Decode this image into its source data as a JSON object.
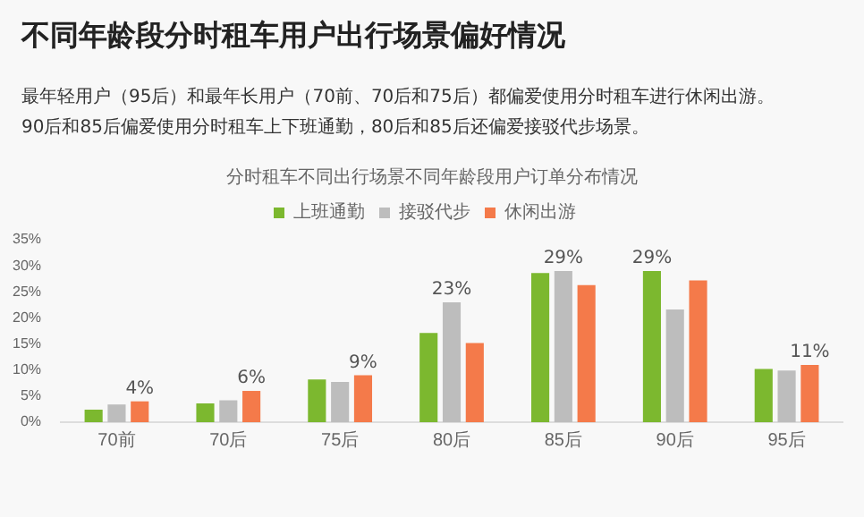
{
  "chart_data": {
    "type": "bar",
    "title": "不同年龄段分时租车用户出行场景偏好情况",
    "subtitle": "最年轻用户（95后）和最年长用户（70前、70后和75后）都偏爱使用分时租车进行休闲出游。\n90后和85后偏爱使用分时租车上下班通勤，80后和85后还偏爱接驳代步场景。",
    "annotations": [
      "分时租车不同出行场景不同年龄段用户订单分布情况"
    ],
    "categories": [
      "70前",
      "70后",
      "75后",
      "80后",
      "85后",
      "90后",
      "95后"
    ],
    "series": [
      {
        "name": "上班通勤",
        "color": "#7cb82f",
        "values": [
          2.4,
          3.6,
          8.2,
          17.1,
          28.6,
          29,
          10.2
        ],
        "value_labels": [
          null,
          null,
          null,
          null,
          null,
          "29%",
          null
        ]
      },
      {
        "name": "接驳代步",
        "color": "#bdbdbd",
        "values": [
          3.4,
          4.2,
          7.7,
          23,
          29,
          21.6,
          9.9
        ],
        "value_labels": [
          null,
          null,
          null,
          "23%",
          "29%",
          null,
          null
        ]
      },
      {
        "name": "休闲出游",
        "color": "#f47a4a",
        "values": [
          4,
          6,
          9,
          15.2,
          26.3,
          27.2,
          11
        ],
        "value_labels": [
          "4%",
          "6%",
          "9%",
          null,
          null,
          null,
          "11%"
        ]
      }
    ],
    "ylim": [
      0,
      35
    ],
    "yticks": [
      {
        "value": 0,
        "label": "0%"
      },
      {
        "value": 5,
        "label": "5%"
      },
      {
        "value": 10,
        "label": "10%"
      },
      {
        "value": 15,
        "label": "15%"
      },
      {
        "value": 20,
        "label": "20%"
      },
      {
        "value": 25,
        "label": "25%"
      },
      {
        "value": 30,
        "label": "30%"
      },
      {
        "value": 35,
        "label": "35%"
      }
    ],
    "grid": false,
    "legend": "top right"
  }
}
